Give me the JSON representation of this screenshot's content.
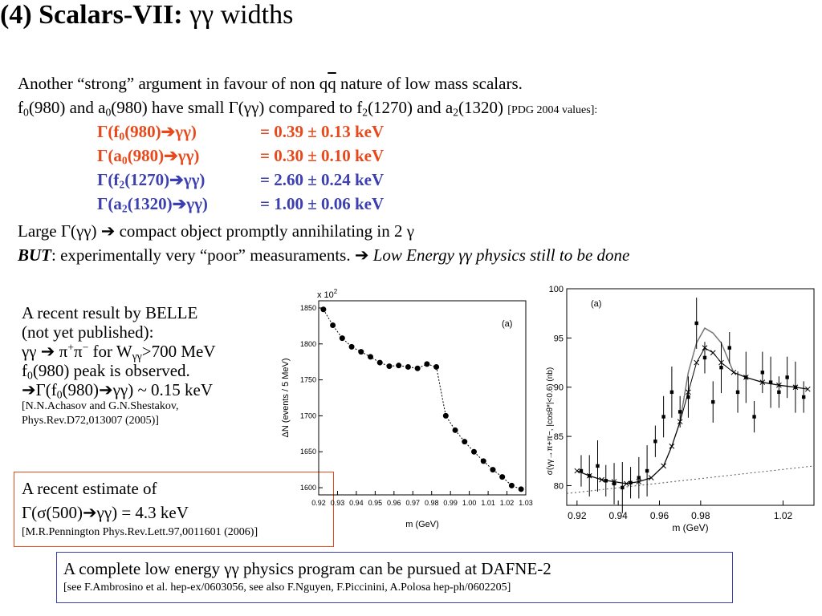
{
  "title": {
    "bold": "(4) Scalars-VII:",
    "rest": "γγ widths"
  },
  "intro": {
    "line1_pre": "Another “strong” argument in favour of non q",
    "line1_bar": "q",
    "line1_post": " nature of low mass scalars.",
    "line2_f": "f",
    "line2_f_sub": "0",
    "line2_mid": "(980) and a",
    "line2_a_sub": "0",
    "line2_mid2": "(980) have small Γ(γγ) compared to f",
    "line2_f2_sub": "2",
    "line2_mid3": "(1270) and a",
    "line2_a2_sub": "2",
    "line2_end": "(1320) ",
    "line2_ref": "[PDG 2004  values]:"
  },
  "widths": [
    {
      "pre": "Γ(f",
      "sub": "0",
      "post": "(980)➔γγ)",
      "value": "=  0.39 ± 0.13 keV",
      "color": "#e8491b"
    },
    {
      "pre": "Γ(a",
      "sub": "0",
      "post": "(980)➔γγ)",
      "value": "=  0.30 ± 0.10 keV",
      "color": "#e8491b"
    },
    {
      "pre": "Γ(f",
      "sub": "2",
      "post": "(1270)➔γγ)",
      "value": "=  2.60 ± 0.24 keV",
      "color": "#3b3fb0"
    },
    {
      "pre": "Γ(a",
      "sub": "2",
      "post": "(1320)➔γγ)",
      "value": "=  1.00 ± 0.06 keV",
      "color": "#3b3fb0"
    }
  ],
  "large_line": "Large Γ(γγ) ➔ compact object promptly annihilating in 2 γ",
  "but_line": {
    "but": "BUT",
    "rest": ": experimentally very “poor” measuraments. ➔ ",
    "italic": "Low Energy  γγ physics still to be done"
  },
  "belle": {
    "l1": "A recent result by BELLE",
    "l2": "(not yet published):",
    "l3_pre": "γγ ➔ π",
    "l3_sup1": "+",
    "l3_mid": "π",
    "l3_sup2": "−",
    "l3_post": " for W",
    "l3_sub": "γγ",
    "l3_end": ">700 MeV",
    "l4_pre": "f",
    "l4_sub": "0",
    "l4_post": "(980) peak is observed.",
    "l5_pre": "➔Γ(f",
    "l5_sub": "0",
    "l5_post": "(980)➔γγ) ~ 0.15 keV",
    "ref1": "[N.N.Achasov and G.N.Shestakov,",
    "ref2": "Phys.Rev.D72,013007 (2005)]"
  },
  "estimate": {
    "l1": "A recent estimate of",
    "l2": "Γ(σ(500)➔γγ) = 4.3 keV",
    "ref": "[M.R.Pennington Phys.Rev.Lett.97,0011601 (2006)]"
  },
  "footer": {
    "main": "A complete low energy γγ physics program can be pursued at DAFNE-2",
    "ref": "[see F.Ambrosino et al. hep-ex/0603056, see also F.Nguyen, F.Piccinini, A.Polosa hep-ph/0602205]"
  },
  "chart_data": [
    {
      "type": "scatter",
      "panel_label": "(a)",
      "exponent_label": "x 10",
      "exponent_sup": "2",
      "xlabel": "m  (GeV)",
      "ylabel": "ΔN (events / 5 MeV)",
      "xlim": [
        0.92,
        1.03
      ],
      "ylim": [
        1590,
        1860
      ],
      "xticks": [
        "0.92",
        "0.93",
        "0.94",
        "0.95",
        "0.96",
        "0.97",
        "0.98",
        "0.99",
        "1.00",
        "1.01",
        "1.02",
        "1.03"
      ],
      "yticks": [
        "1600",
        "1650",
        "1700",
        "1750",
        "1800",
        "1850"
      ],
      "x": [
        0.9225,
        0.9275,
        0.9325,
        0.9375,
        0.9425,
        0.9475,
        0.9525,
        0.9575,
        0.9625,
        0.9675,
        0.9725,
        0.9775,
        0.9825,
        0.9875,
        0.9925,
        0.9975,
        1.0025,
        1.0075,
        1.0125,
        1.0175,
        1.0225,
        1.0275
      ],
      "y": [
        1848,
        1826,
        1808,
        1796,
        1789,
        1782,
        1774,
        1769,
        1770,
        1768,
        1766,
        1772,
        1768,
        1700,
        1680,
        1664,
        1650,
        1637,
        1625,
        1615,
        1603,
        1598
      ]
    },
    {
      "type": "scatter",
      "panel_label": "(a)",
      "xlabel": "m  (GeV)",
      "ylabel": "σ(γγ→π+π−, |cosθ*|<0.6)  (nb)",
      "xlim": [
        0.915,
        1.035
      ],
      "ylim": [
        78,
        100
      ],
      "xticks": [
        "0.92",
        "0.94",
        "0.96",
        "0.98",
        "1.02"
      ],
      "yticks": [
        "80",
        "85",
        "90",
        "95",
        "100"
      ],
      "series": [
        {
          "x": [
            0.922,
            0.926,
            0.93,
            0.934,
            0.938,
            0.942,
            0.946,
            0.95,
            0.954,
            0.958,
            0.962,
            0.966,
            0.97,
            0.974,
            0.978,
            0.982,
            0.986,
            0.99,
            0.994,
            0.998,
            1.002,
            1.006,
            1.01,
            1.014,
            1.018,
            1.022,
            1.026,
            1.03
          ],
          "y": [
            81.5,
            81.0,
            82.0,
            80.5,
            80.2,
            79.8,
            80.3,
            80.8,
            81.5,
            84.5,
            87.0,
            89.5,
            87.5,
            89.0,
            96.5,
            93.0,
            88.5,
            92.0,
            94.0,
            89.5,
            91.0,
            87.0,
            91.5,
            90.5,
            89.5,
            91.0,
            90.0,
            89.0
          ]
        },
        {
          "x": [
            0.92,
            0.926,
            0.932,
            0.938,
            0.944,
            0.95,
            0.956,
            0.962,
            0.966,
            0.97,
            0.974,
            0.978,
            0.982,
            0.986,
            0.99,
            0.996,
            1.002,
            1.01,
            1.018,
            1.026,
            1.032
          ],
          "y": [
            81.5,
            81.0,
            80.6,
            80.4,
            80.2,
            80.4,
            80.8,
            82.0,
            84.0,
            86.5,
            89.5,
            92.5,
            94.0,
            93.5,
            92.5,
            91.5,
            91.0,
            90.5,
            90.2,
            90.0,
            89.8
          ]
        }
      ]
    }
  ]
}
